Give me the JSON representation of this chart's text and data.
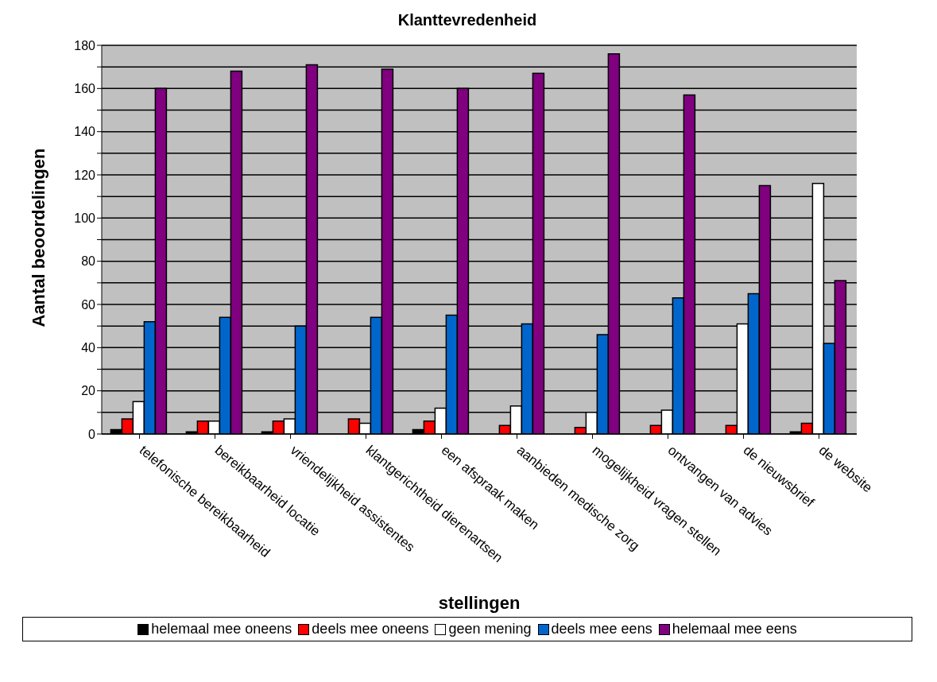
{
  "chart_data": {
    "type": "bar",
    "title": "Klanttevredenheid",
    "xlabel": "stellingen",
    "ylabel": "Aantal beoordelingen",
    "categories": [
      "telefonische bereikbaarheid",
      "bereikbaarheid locatie",
      "vriendelijkheid assistentes",
      "klantgerichtheid dierenartsen",
      "een afspraak maken",
      "aanbieden medische zorg",
      "mogelijkheid vragen stellen",
      "ontvangen van advies",
      "de nieuwsbrief",
      "de website"
    ],
    "series": [
      {
        "name": "helemaal mee oneens",
        "color": "#000000",
        "values": [
          2,
          1,
          1,
          0,
          2,
          0,
          0,
          0,
          0,
          1
        ]
      },
      {
        "name": "deels mee oneens",
        "color": "#ff0000",
        "values": [
          7,
          6,
          6,
          7,
          6,
          4,
          3,
          4,
          4,
          5
        ]
      },
      {
        "name": "geen mening",
        "color": "#ffffff",
        "values": [
          15,
          6,
          7,
          5,
          12,
          13,
          10,
          11,
          51,
          116
        ]
      },
      {
        "name": "deels mee eens",
        "color": "#0066cc",
        "values": [
          52,
          54,
          50,
          54,
          55,
          51,
          46,
          63,
          65,
          42
        ]
      },
      {
        "name": "helemaal mee eens",
        "color": "#800080",
        "values": [
          160,
          168,
          171,
          169,
          160,
          167,
          176,
          157,
          115,
          71
        ]
      }
    ],
    "ylim": [
      0,
      180
    ],
    "yticks": [
      0,
      {
        "value": 10,
        "label": null
      },
      20,
      {
        "value": 30,
        "label": null
      },
      40,
      {
        "value": 50,
        "label": null
      },
      60,
      {
        "value": 70,
        "label": null
      },
      80,
      {
        "value": 90,
        "label": null
      },
      100,
      {
        "value": 110,
        "label": null
      },
      120,
      {
        "value": 130,
        "label": null
      },
      140,
      {
        "value": 150,
        "label": null
      },
      160,
      {
        "value": 170,
        "label": null
      },
      180
    ],
    "grid": "y",
    "legend": "bottom"
  }
}
